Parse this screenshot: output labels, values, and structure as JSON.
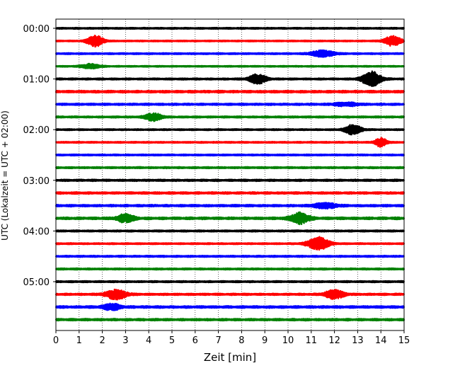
{
  "chart_data": {
    "type": "line",
    "subtype": "helicorder",
    "title": "",
    "xlabel": "Zeit  [min]",
    "ylabel": "UTC (Lokalzeit = UTC + 02:00)",
    "xlim": [
      0,
      15
    ],
    "x_ticks": [
      0,
      1,
      2,
      3,
      4,
      5,
      6,
      7,
      8,
      9,
      10,
      11,
      12,
      13,
      14,
      15
    ],
    "x_tick_labels": [
      "0",
      "1",
      "2",
      "3",
      "4",
      "5",
      "6",
      "7",
      "8",
      "9",
      "10",
      "11",
      "12",
      "13",
      "14",
      "15"
    ],
    "grid": "vertical dotted",
    "rows_per_hour": 4,
    "row_minutes": 15,
    "y_tick_labels": [
      "00:00",
      "01:00",
      "02:00",
      "03:00",
      "04:00",
      "05:00"
    ],
    "colors": [
      "#000000",
      "#ff0000",
      "#0000ff",
      "#008000"
    ],
    "series": [
      {
        "name": "00:00",
        "color": "#000000",
        "noise": 0.35,
        "bursts": []
      },
      {
        "name": "00:15",
        "color": "#ff0000",
        "noise": 0.3,
        "bursts": [
          {
            "t": 1.7,
            "amp": 3.2,
            "w": 0.35
          },
          {
            "t": 14.5,
            "amp": 3.0,
            "w": 0.35
          }
        ]
      },
      {
        "name": "00:30",
        "color": "#0000ff",
        "noise": 0.35,
        "bursts": [
          {
            "t": 11.5,
            "amp": 1.8,
            "w": 0.5
          }
        ]
      },
      {
        "name": "00:45",
        "color": "#008000",
        "noise": 0.3,
        "bursts": [
          {
            "t": 1.5,
            "amp": 1.3,
            "w": 0.4
          }
        ]
      },
      {
        "name": "01:00",
        "color": "#000000",
        "noise": 0.4,
        "bursts": [
          {
            "t": 8.7,
            "amp": 2.8,
            "w": 0.35
          },
          {
            "t": 13.6,
            "amp": 4.2,
            "w": 0.4
          }
        ]
      },
      {
        "name": "01:15",
        "color": "#ff0000",
        "noise": 0.55,
        "bursts": []
      },
      {
        "name": "01:30",
        "color": "#0000ff",
        "noise": 0.45,
        "bursts": [
          {
            "t": 12.5,
            "amp": 1.0,
            "w": 0.5
          }
        ]
      },
      {
        "name": "01:45",
        "color": "#008000",
        "noise": 0.4,
        "bursts": [
          {
            "t": 4.2,
            "amp": 2.2,
            "w": 0.35
          }
        ]
      },
      {
        "name": "02:00",
        "color": "#000000",
        "noise": 0.35,
        "bursts": [
          {
            "t": 12.8,
            "amp": 3.0,
            "w": 0.35
          }
        ]
      },
      {
        "name": "02:15",
        "color": "#ff0000",
        "noise": 0.35,
        "bursts": [
          {
            "t": 14.0,
            "amp": 2.6,
            "w": 0.25
          }
        ]
      },
      {
        "name": "02:30",
        "color": "#0000ff",
        "noise": 0.35,
        "bursts": []
      },
      {
        "name": "02:45",
        "color": "#008000",
        "noise": 0.4,
        "bursts": []
      },
      {
        "name": "03:00",
        "color": "#000000",
        "noise": 0.45,
        "bursts": []
      },
      {
        "name": "03:15",
        "color": "#ff0000",
        "noise": 0.5,
        "bursts": []
      },
      {
        "name": "03:30",
        "color": "#0000ff",
        "noise": 0.5,
        "bursts": [
          {
            "t": 11.6,
            "amp": 1.4,
            "w": 0.5
          }
        ]
      },
      {
        "name": "03:45",
        "color": "#008000",
        "noise": 0.55,
        "bursts": [
          {
            "t": 3.0,
            "amp": 2.3,
            "w": 0.35
          },
          {
            "t": 10.5,
            "amp": 3.0,
            "w": 0.4
          }
        ]
      },
      {
        "name": "04:00",
        "color": "#000000",
        "noise": 0.4,
        "bursts": []
      },
      {
        "name": "04:15",
        "color": "#ff0000",
        "noise": 0.35,
        "bursts": [
          {
            "t": 11.3,
            "amp": 3.8,
            "w": 0.45
          }
        ]
      },
      {
        "name": "04:30",
        "color": "#0000ff",
        "noise": 0.4,
        "bursts": []
      },
      {
        "name": "04:45",
        "color": "#008000",
        "noise": 0.4,
        "bursts": []
      },
      {
        "name": "05:00",
        "color": "#000000",
        "noise": 0.4,
        "bursts": []
      },
      {
        "name": "05:15",
        "color": "#ff0000",
        "noise": 0.45,
        "bursts": [
          {
            "t": 2.6,
            "amp": 2.8,
            "w": 0.45
          },
          {
            "t": 12.0,
            "amp": 2.5,
            "w": 0.4
          }
        ]
      },
      {
        "name": "05:30",
        "color": "#0000ff",
        "noise": 0.55,
        "bursts": [
          {
            "t": 2.4,
            "amp": 1.8,
            "w": 0.35
          }
        ]
      },
      {
        "name": "05:45",
        "color": "#008000",
        "noise": 0.5,
        "bursts": []
      }
    ]
  }
}
